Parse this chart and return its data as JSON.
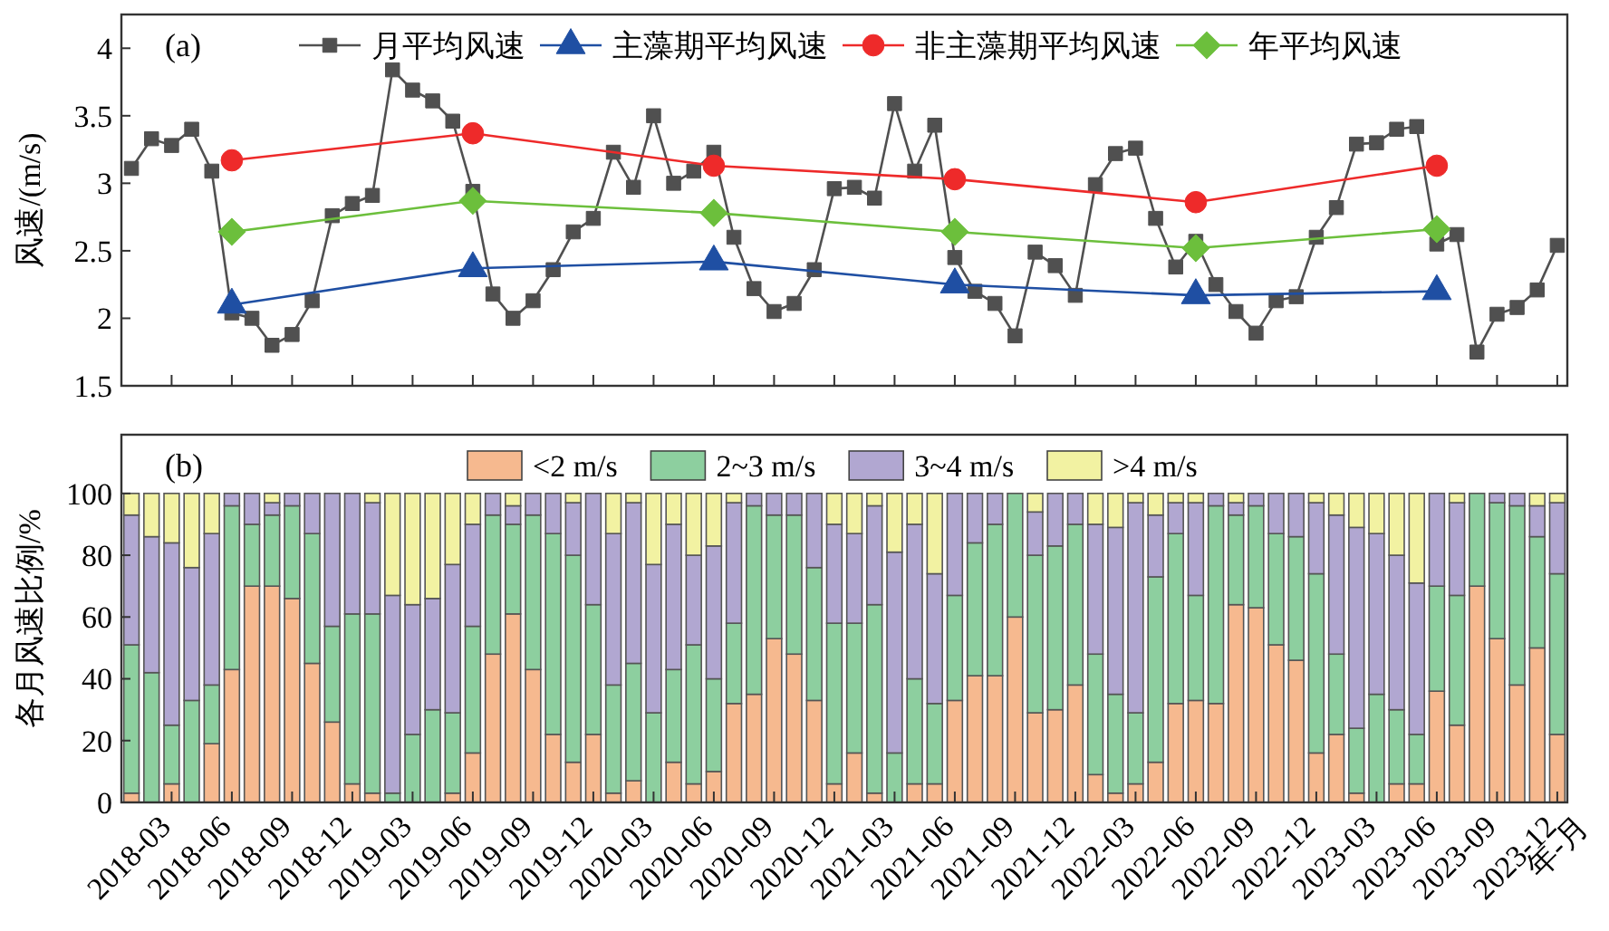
{
  "chart_data": [
    {
      "type": "line",
      "annotations": [
        "(a)"
      ],
      "ylabel": "风速/(m/s)",
      "ylim": [
        1.5,
        4.25
      ],
      "yticks": [
        1.5,
        2.0,
        2.5,
        3.0,
        3.5,
        4.0
      ],
      "tick_labels": "y",
      "legend": "top",
      "grid": false,
      "categories": [
        null,
        null,
        "2018-03",
        null,
        null,
        "2018-06",
        null,
        null,
        "2018-09",
        null,
        null,
        "2018-12",
        null,
        null,
        "2019-03",
        null,
        null,
        "2019-06",
        null,
        null,
        "2019-09",
        null,
        null,
        "2019-12",
        null,
        null,
        "2020-03",
        null,
        null,
        "2020-06",
        null,
        null,
        "2020-09",
        null,
        null,
        "2020-12",
        null,
        null,
        "2021-03",
        null,
        null,
        "2021-06",
        null,
        null,
        "2021-09",
        null,
        null,
        "2021-12",
        null,
        null,
        "2022-03",
        null,
        null,
        "2022-06",
        null,
        null,
        "2022-09",
        null,
        null,
        "2022-12",
        null,
        null,
        "2023-03",
        null,
        null,
        "2023-06",
        null,
        null,
        "2023-09",
        null,
        null,
        "2023-12"
      ],
      "series": [
        {
          "name": "月平均风速",
          "color": "#505050",
          "marker": "square",
          "values": [
            3.11,
            3.33,
            3.28,
            3.4,
            3.09,
            2.04,
            2.0,
            1.8,
            1.88,
            2.13,
            2.76,
            2.85,
            2.91,
            3.84,
            3.69,
            3.61,
            3.46,
            2.94,
            2.18,
            2.0,
            2.13,
            2.36,
            2.64,
            2.74,
            3.23,
            2.97,
            3.5,
            3.0,
            3.09,
            3.23,
            2.6,
            2.22,
            2.05,
            2.11,
            2.36,
            2.96,
            2.97,
            2.89,
            3.59,
            3.09,
            3.43,
            2.45,
            2.2,
            2.11,
            1.87,
            2.49,
            2.39,
            2.17,
            2.99,
            3.22,
            3.26,
            2.74,
            2.38,
            2.57,
            2.25,
            2.05,
            1.89,
            2.13,
            2.16,
            2.6,
            2.82,
            3.29,
            3.3,
            3.4,
            3.42,
            2.55,
            2.62,
            1.75,
            2.03,
            2.08,
            2.21,
            2.54
          ]
        },
        {
          "name": "主藻期平均风速",
          "color": "#1f4fa3",
          "marker": "triangle",
          "values": [
            null,
            null,
            null,
            null,
            null,
            2.1,
            null,
            null,
            null,
            null,
            null,
            null,
            null,
            null,
            null,
            null,
            null,
            2.37,
            null,
            null,
            null,
            null,
            null,
            null,
            null,
            null,
            null,
            null,
            null,
            2.42,
            null,
            null,
            null,
            null,
            null,
            null,
            null,
            null,
            null,
            null,
            null,
            2.25,
            null,
            null,
            null,
            null,
            null,
            null,
            null,
            null,
            null,
            null,
            null,
            2.17,
            null,
            null,
            null,
            null,
            null,
            null,
            null,
            null,
            null,
            null,
            null,
            2.2,
            null,
            null,
            null,
            null,
            null,
            null
          ]
        },
        {
          "name": "非主藻期平均风速",
          "color": "#ee2a2a",
          "marker": "circle",
          "values": [
            null,
            null,
            null,
            null,
            null,
            3.17,
            null,
            null,
            null,
            null,
            null,
            null,
            null,
            null,
            null,
            null,
            null,
            3.37,
            null,
            null,
            null,
            null,
            null,
            null,
            null,
            null,
            null,
            null,
            null,
            3.13,
            null,
            null,
            null,
            null,
            null,
            null,
            null,
            null,
            null,
            null,
            null,
            3.03,
            null,
            null,
            null,
            null,
            null,
            null,
            null,
            null,
            null,
            null,
            null,
            2.86,
            null,
            null,
            null,
            null,
            null,
            null,
            null,
            null,
            null,
            null,
            null,
            3.13,
            null,
            null,
            null,
            null,
            null,
            null
          ]
        },
        {
          "name": "年平均风速",
          "color": "#6cbf3c",
          "marker": "diamond",
          "values": [
            null,
            null,
            null,
            null,
            null,
            2.64,
            null,
            null,
            null,
            null,
            null,
            null,
            null,
            null,
            null,
            null,
            null,
            2.87,
            null,
            null,
            null,
            null,
            null,
            null,
            null,
            null,
            null,
            null,
            null,
            2.78,
            null,
            null,
            null,
            null,
            null,
            null,
            null,
            null,
            null,
            null,
            null,
            2.64,
            null,
            null,
            null,
            null,
            null,
            null,
            null,
            null,
            null,
            null,
            null,
            2.52,
            null,
            null,
            null,
            null,
            null,
            null,
            null,
            null,
            null,
            null,
            null,
            2.66,
            null,
            null,
            null,
            null,
            null,
            null
          ]
        }
      ]
    },
    {
      "type": "bar",
      "stacked": true,
      "annotations": [
        "(b)"
      ],
      "xlabel": "年-月",
      "ylabel": "各月风速比例/%",
      "ylim": [
        0,
        119
      ],
      "yticks": [
        0,
        20,
        40,
        60,
        80,
        100
      ],
      "legend": "top",
      "grid": false,
      "categories": [
        null,
        null,
        "2018-03",
        null,
        null,
        "2018-06",
        null,
        null,
        "2018-09",
        null,
        null,
        "2018-12",
        null,
        null,
        "2019-03",
        null,
        null,
        "2019-06",
        null,
        null,
        "2019-09",
        null,
        null,
        "2019-12",
        null,
        null,
        "2020-03",
        null,
        null,
        "2020-06",
        null,
        null,
        "2020-09",
        null,
        null,
        "2020-12",
        null,
        null,
        "2021-03",
        null,
        null,
        "2021-06",
        null,
        null,
        "2021-09",
        null,
        null,
        "2021-12",
        null,
        null,
        "2022-03",
        null,
        null,
        "2022-06",
        null,
        null,
        "2022-09",
        null,
        null,
        "2022-12",
        null,
        null,
        "2023-03",
        null,
        null,
        "2023-06",
        null,
        null,
        "2023-09",
        null,
        null,
        "2023-12"
      ],
      "series": [
        {
          "name": "<2 m/s",
          "color": "#f6b98f",
          "values": [
            3,
            0,
            6,
            0,
            19,
            43,
            70,
            70,
            66,
            45,
            26,
            6,
            3,
            0,
            0,
            0,
            3,
            16,
            48,
            61,
            43,
            22,
            13,
            22,
            3,
            7,
            0,
            13,
            6,
            10,
            32,
            35,
            53,
            48,
            33,
            6,
            16,
            3,
            0,
            6,
            6,
            33,
            41,
            41,
            60,
            29,
            30,
            38,
            9,
            3,
            6,
            13,
            32,
            33,
            32,
            64,
            63,
            51,
            46,
            16,
            22,
            3,
            0,
            6,
            6,
            36,
            25,
            70,
            53,
            38,
            50,
            22
          ]
        },
        {
          "name": "2~3 m/s",
          "color": "#8dcf9f",
          "values": [
            48,
            42,
            19,
            33,
            19,
            53,
            20,
            23,
            30,
            42,
            31,
            55,
            58,
            3,
            22,
            30,
            26,
            41,
            45,
            29,
            50,
            65,
            67,
            42,
            35,
            38,
            29,
            30,
            45,
            30,
            26,
            61,
            40,
            45,
            43,
            52,
            42,
            61,
            16,
            34,
            26,
            34,
            43,
            49,
            40,
            51,
            53,
            52,
            39,
            32,
            23,
            60,
            55,
            34,
            64,
            29,
            33,
            36,
            40,
            58,
            26,
            21,
            35,
            24,
            16,
            34,
            42,
            30,
            44,
            58,
            36,
            52
          ]
        },
        {
          "name": "3~4 m/s",
          "color": "#b1a7d1",
          "values": [
            42,
            44,
            59,
            43,
            49,
            4,
            10,
            4,
            4,
            13,
            43,
            39,
            36,
            64,
            42,
            36,
            48,
            33,
            7,
            6,
            7,
            13,
            17,
            36,
            49,
            52,
            48,
            47,
            29,
            43,
            39,
            4,
            7,
            7,
            24,
            32,
            29,
            32,
            65,
            50,
            42,
            33,
            16,
            10,
            0,
            14,
            17,
            10,
            42,
            54,
            68,
            20,
            10,
            30,
            4,
            4,
            4,
            13,
            14,
            23,
            45,
            65,
            52,
            50,
            49,
            30,
            30,
            0,
            3,
            4,
            10,
            23
          ]
        },
        {
          "name": ">4 m/s",
          "color": "#f2f2a2",
          "values": [
            7,
            14,
            16,
            24,
            13,
            0,
            0,
            3,
            0,
            0,
            0,
            0,
            3,
            33,
            36,
            34,
            23,
            10,
            0,
            4,
            0,
            0,
            3,
            0,
            13,
            3,
            23,
            10,
            20,
            17,
            3,
            0,
            0,
            0,
            0,
            10,
            13,
            4,
            19,
            10,
            26,
            0,
            0,
            0,
            0,
            6,
            0,
            0,
            10,
            11,
            3,
            7,
            3,
            3,
            0,
            3,
            0,
            0,
            0,
            3,
            7,
            11,
            13,
            20,
            29,
            0,
            3,
            0,
            0,
            0,
            4,
            3
          ]
        }
      ]
    }
  ]
}
